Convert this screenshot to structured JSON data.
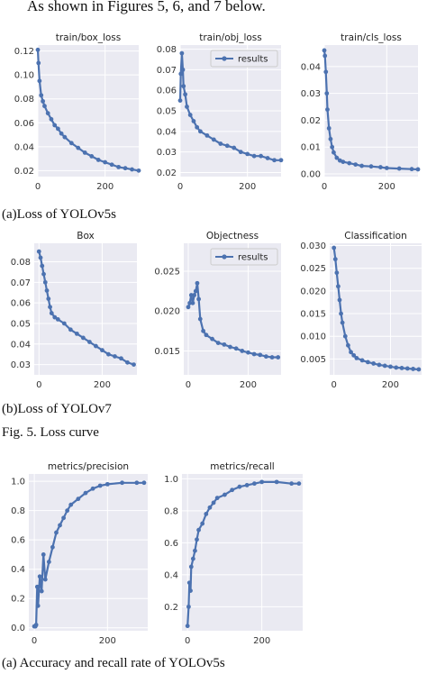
{
  "text": {
    "intro": "As shown in Figures 5, 6, and 7 below.",
    "caption_a": "(a)Loss of YOLOv5s",
    "caption_b": "(b)Loss of YOLOv7",
    "fig5": "Fig. 5. Loss curve",
    "caption_c": "(a) Accuracy and recall rate of YOLOv5s"
  },
  "chart_data": [
    {
      "id": "c1",
      "type": "line",
      "title": "train/box_loss",
      "xlim": [
        0,
        300
      ],
      "ylim": [
        0.015,
        0.125
      ],
      "xticks": [
        0,
        200
      ],
      "yticks": [
        0.02,
        0.04,
        0.06,
        0.08,
        0.1,
        0.12
      ],
      "ytick_labels": [
        "0.02",
        "0.04",
        "0.06",
        "0.08",
        "0.10",
        "0.12"
      ],
      "legend": null,
      "series": [
        {
          "x": [
            0,
            2,
            5,
            10,
            15,
            20,
            30,
            40,
            50,
            60,
            70,
            80,
            100,
            120,
            140,
            160,
            180,
            200,
            220,
            240,
            260,
            280,
            300
          ],
          "y": [
            0.121,
            0.11,
            0.095,
            0.083,
            0.078,
            0.074,
            0.068,
            0.063,
            0.058,
            0.055,
            0.051,
            0.048,
            0.043,
            0.039,
            0.035,
            0.032,
            0.029,
            0.027,
            0.025,
            0.023,
            0.022,
            0.021,
            0.02
          ]
        }
      ],
      "color": "#4c72b0"
    },
    {
      "id": "c2",
      "type": "line",
      "title": "train/obj_loss",
      "xlim": [
        0,
        300
      ],
      "ylim": [
        0.018,
        0.082
      ],
      "xticks": [
        0,
        200
      ],
      "yticks": [
        0.02,
        0.03,
        0.04,
        0.05,
        0.06,
        0.07,
        0.08
      ],
      "ytick_labels": [
        "0.02",
        "0.03",
        "0.04",
        "0.05",
        "0.06",
        "0.07",
        "0.08"
      ],
      "legend": "results",
      "series": [
        {
          "x": [
            0,
            2,
            5,
            8,
            10,
            15,
            20,
            30,
            40,
            50,
            60,
            80,
            100,
            120,
            140,
            160,
            180,
            200,
            220,
            240,
            260,
            280,
            300
          ],
          "y": [
            0.055,
            0.068,
            0.078,
            0.07,
            0.062,
            0.058,
            0.052,
            0.048,
            0.045,
            0.042,
            0.04,
            0.038,
            0.036,
            0.034,
            0.033,
            0.032,
            0.03,
            0.029,
            0.028,
            0.028,
            0.027,
            0.026,
            0.026
          ]
        }
      ],
      "color": "#4c72b0"
    },
    {
      "id": "c3",
      "type": "line",
      "title": "train/cls_loss",
      "xlim": [
        0,
        300
      ],
      "ylim": [
        -0.001,
        0.048
      ],
      "xticks": [
        0,
        200
      ],
      "yticks": [
        0.0,
        0.01,
        0.02,
        0.03,
        0.04
      ],
      "ytick_labels": [
        "0.00",
        "0.01",
        "0.02",
        "0.03",
        "0.04"
      ],
      "legend": null,
      "series": [
        {
          "x": [
            0,
            2,
            5,
            8,
            10,
            15,
            20,
            25,
            30,
            40,
            50,
            60,
            80,
            100,
            120,
            150,
            180,
            200,
            240,
            280,
            300
          ],
          "y": [
            0.046,
            0.044,
            0.038,
            0.03,
            0.024,
            0.017,
            0.013,
            0.01,
            0.008,
            0.006,
            0.005,
            0.0045,
            0.004,
            0.0035,
            0.003,
            0.0028,
            0.0025,
            0.0022,
            0.002,
            0.0018,
            0.0017
          ]
        }
      ],
      "color": "#4c72b0"
    },
    {
      "id": "c4",
      "type": "line",
      "title": "Box",
      "xlim": [
        -15,
        310
      ],
      "ylim": [
        0.025,
        0.089
      ],
      "xticks": [
        0,
        200
      ],
      "yticks": [
        0.03,
        0.04,
        0.05,
        0.06,
        0.07,
        0.08
      ],
      "ytick_labels": [
        "0.03",
        "0.04",
        "0.05",
        "0.06",
        "0.07",
        "0.08"
      ],
      "legend": null,
      "series": [
        {
          "x": [
            0,
            5,
            10,
            15,
            20,
            25,
            30,
            35,
            40,
            50,
            60,
            80,
            100,
            120,
            140,
            160,
            180,
            200,
            220,
            240,
            260,
            280,
            300
          ],
          "y": [
            0.085,
            0.082,
            0.078,
            0.074,
            0.07,
            0.066,
            0.062,
            0.058,
            0.055,
            0.053,
            0.052,
            0.05,
            0.047,
            0.045,
            0.043,
            0.041,
            0.039,
            0.037,
            0.035,
            0.034,
            0.033,
            0.031,
            0.03
          ]
        }
      ],
      "color": "#4c72b0"
    },
    {
      "id": "c5",
      "type": "line",
      "title": "Objectness",
      "xlim": [
        -15,
        310
      ],
      "ylim": [
        0.012,
        0.0285
      ],
      "xticks": [
        0,
        200
      ],
      "yticks": [
        0.015,
        0.02,
        0.025
      ],
      "ytick_labels": [
        "0.015",
        "0.020",
        "0.025"
      ],
      "legend": "results",
      "series": [
        {
          "x": [
            0,
            5,
            10,
            15,
            20,
            25,
            30,
            35,
            40,
            50,
            60,
            80,
            100,
            120,
            140,
            160,
            180,
            200,
            220,
            240,
            260,
            280,
            300
          ],
          "y": [
            0.0205,
            0.021,
            0.022,
            0.021,
            0.022,
            0.0225,
            0.0235,
            0.0215,
            0.019,
            0.0175,
            0.017,
            0.0165,
            0.016,
            0.0158,
            0.0155,
            0.0153,
            0.015,
            0.0148,
            0.0146,
            0.0145,
            0.0143,
            0.0142,
            0.0142
          ]
        }
      ],
      "color": "#4c72b0"
    },
    {
      "id": "c6",
      "type": "line",
      "title": "Classification",
      "xlim": [
        -15,
        310
      ],
      "ylim": [
        0.0015,
        0.0305
      ],
      "xticks": [
        0,
        200
      ],
      "yticks": [
        0.005,
        0.01,
        0.015,
        0.02,
        0.025,
        0.03
      ],
      "ytick_labels": [
        "0.005",
        "0.010",
        "0.015",
        "0.020",
        "0.025",
        "0.030"
      ],
      "legend": null,
      "series": [
        {
          "x": [
            0,
            5,
            10,
            15,
            20,
            25,
            30,
            40,
            50,
            60,
            70,
            80,
            100,
            120,
            140,
            160,
            180,
            200,
            220,
            240,
            260,
            280,
            300
          ],
          "y": [
            0.0295,
            0.027,
            0.024,
            0.021,
            0.018,
            0.015,
            0.013,
            0.01,
            0.008,
            0.0065,
            0.0058,
            0.0052,
            0.0047,
            0.0043,
            0.004,
            0.0037,
            0.0035,
            0.0033,
            0.0031,
            0.003,
            0.0029,
            0.0028,
            0.0027
          ]
        }
      ],
      "color": "#4c72b0"
    },
    {
      "id": "c7",
      "type": "line",
      "title": "metrics/precision",
      "xlim": [
        -15,
        310
      ],
      "ylim": [
        -0.02,
        1.05
      ],
      "xticks": [
        0,
        200
      ],
      "yticks": [
        0.0,
        0.2,
        0.4,
        0.6,
        0.8,
        1.0
      ],
      "ytick_labels": [
        "0.0",
        "0.2",
        "0.4",
        "0.6",
        "0.8",
        "1.0"
      ],
      "legend": null,
      "series": [
        {
          "x": [
            0,
            3,
            5,
            8,
            10,
            15,
            20,
            25,
            30,
            40,
            50,
            60,
            70,
            80,
            90,
            100,
            120,
            140,
            160,
            180,
            200,
            240,
            280,
            300
          ],
          "y": [
            0.01,
            0.01,
            0.02,
            0.28,
            0.15,
            0.35,
            0.25,
            0.5,
            0.33,
            0.45,
            0.55,
            0.65,
            0.7,
            0.75,
            0.8,
            0.84,
            0.88,
            0.92,
            0.95,
            0.97,
            0.98,
            0.99,
            0.99,
            0.99
          ]
        }
      ],
      "color": "#4c72b0"
    },
    {
      "id": "c8",
      "type": "line",
      "title": "metrics/recall",
      "xlim": [
        -15,
        310
      ],
      "ylim": [
        0.05,
        1.03
      ],
      "xticks": [
        0,
        200
      ],
      "yticks": [
        0.2,
        0.4,
        0.6,
        0.8,
        1.0
      ],
      "ytick_labels": [
        "0.2",
        "0.4",
        "0.6",
        "0.8",
        "1.0"
      ],
      "legend": null,
      "series": [
        {
          "x": [
            0,
            3,
            5,
            8,
            10,
            15,
            20,
            25,
            30,
            40,
            50,
            60,
            70,
            80,
            100,
            120,
            140,
            160,
            180,
            200,
            240,
            280,
            300
          ],
          "y": [
            0.08,
            0.2,
            0.35,
            0.3,
            0.45,
            0.5,
            0.55,
            0.62,
            0.68,
            0.72,
            0.78,
            0.82,
            0.85,
            0.88,
            0.9,
            0.93,
            0.95,
            0.96,
            0.97,
            0.98,
            0.98,
            0.97,
            0.97
          ]
        }
      ],
      "color": "#4c72b0"
    }
  ]
}
